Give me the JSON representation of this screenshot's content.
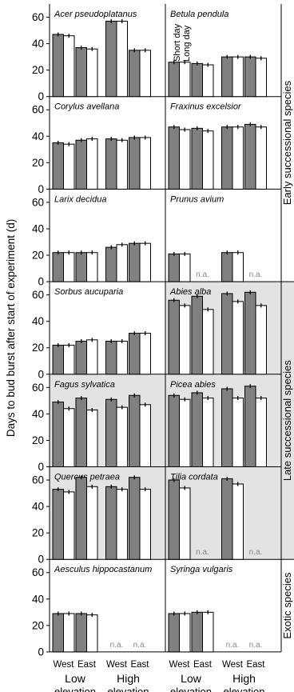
{
  "chart_data": {
    "type": "bar",
    "ylabel": "Days to bud burst after start of experiment (d)",
    "ylim": [
      0,
      70
    ],
    "yticks": [
      0,
      20,
      40,
      60
    ],
    "x_tick_labels": [
      "West",
      "East",
      "West",
      "East"
    ],
    "x_group_labels": [
      "Low\nelevation",
      "High\nelevation"
    ],
    "series": [
      {
        "name": "Short day",
        "color": "#808080"
      },
      {
        "name": "Long day",
        "color": "#ffffff"
      }
    ],
    "na_label": "n.a.",
    "legend_labels": [
      "Short day",
      "Long day"
    ],
    "groups": [
      {
        "label": "Early successional species",
        "shaded": false
      },
      {
        "label": "Late successional species",
        "shaded": true
      },
      {
        "label": "Exotic species",
        "shaded": false
      }
    ],
    "panels": [
      {
        "species": "Acer pseudoplatanus",
        "short": [
          47,
          37,
          57,
          35
        ],
        "long": [
          46,
          36,
          57,
          35
        ]
      },
      {
        "species": "Betula pendula",
        "short": [
          26,
          25,
          30,
          30
        ],
        "long": [
          26,
          24,
          30,
          29
        ]
      },
      {
        "species": "Corylus avellana",
        "short": [
          35,
          37,
          38,
          39
        ],
        "long": [
          34,
          38,
          37,
          39
        ]
      },
      {
        "species": "Fraxinus  excelsior",
        "short": [
          47,
          46,
          47,
          49
        ],
        "long": [
          45,
          44,
          47,
          47
        ]
      },
      {
        "species": "Larix decidua",
        "short": [
          22,
          22,
          26,
          29
        ],
        "long": [
          22,
          22,
          28,
          29
        ]
      },
      {
        "species": "Prunus avium",
        "short": [
          21,
          null,
          22,
          null
        ],
        "long": [
          21,
          null,
          22,
          null
        ]
      },
      {
        "species": "Sorbus aucuparia",
        "short": [
          22,
          25,
          25,
          31
        ],
        "long": [
          22,
          26,
          25,
          31
        ]
      },
      {
        "species": "Abies alba",
        "short": [
          56,
          59,
          61,
          62
        ],
        "long": [
          52,
          49,
          55,
          52
        ]
      },
      {
        "species": "Fagus sylvatica",
        "short": [
          49,
          52,
          51,
          54
        ],
        "long": [
          44,
          43,
          45,
          47
        ]
      },
      {
        "species": "Picea abies",
        "short": [
          54,
          56,
          59,
          61
        ],
        "long": [
          51,
          52,
          52,
          52
        ]
      },
      {
        "species": "Quercus petraea",
        "short": [
          53,
          62,
          55,
          62
        ],
        "long": [
          51,
          55,
          53,
          53
        ]
      },
      {
        "species": "Tilia cordata",
        "short": [
          60,
          null,
          61,
          null
        ],
        "long": [
          54,
          null,
          57,
          null
        ]
      },
      {
        "species": "Aesculus hippocastanum",
        "short": [
          29,
          29,
          null,
          null
        ],
        "long": [
          29,
          28,
          null,
          null
        ]
      },
      {
        "species": "Syringa vulgaris",
        "short": [
          29,
          30,
          null,
          null
        ],
        "long": [
          29,
          30,
          null,
          null
        ]
      }
    ]
  }
}
